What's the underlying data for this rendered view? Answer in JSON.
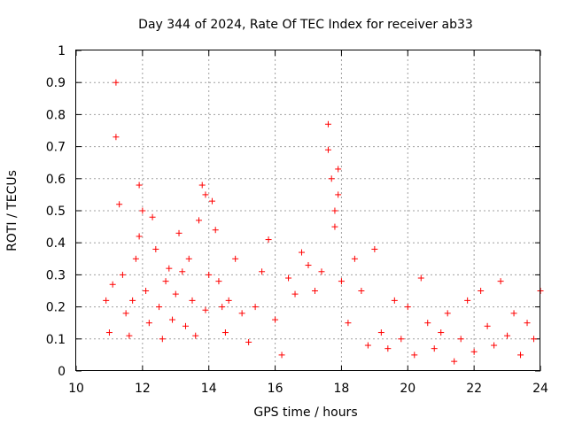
{
  "chart_data": {
    "type": "scatter",
    "title": "Day 344 of 2024, Rate Of TEC Index for receiver ab33",
    "xlabel": "GPS time / hours",
    "ylabel": "ROTI / TECUs",
    "xlim": [
      10,
      24
    ],
    "ylim": [
      0,
      1
    ],
    "grid": true,
    "marker": "+",
    "color": "#ff0000",
    "x_ticks": [
      "10",
      "12",
      "14",
      "16",
      "18",
      "20",
      "22",
      "24"
    ],
    "y_ticks": [
      "0",
      "0.1",
      "0.2",
      "0.3",
      "0.4",
      "0.5",
      "0.6",
      "0.7",
      "0.8",
      "0.9",
      "1"
    ],
    "series": [
      {
        "name": "ROTI",
        "x": [
          10.9,
          11.0,
          11.1,
          11.2,
          11.2,
          11.3,
          11.4,
          11.5,
          11.6,
          11.7,
          11.8,
          11.9,
          11.9,
          12.0,
          12.1,
          12.2,
          12.3,
          12.4,
          12.5,
          12.6,
          12.7,
          12.8,
          12.9,
          13.0,
          13.1,
          13.2,
          13.3,
          13.4,
          13.5,
          13.6,
          13.7,
          13.8,
          13.9,
          13.9,
          14.0,
          14.1,
          14.2,
          14.3,
          14.4,
          14.5,
          14.6,
          14.8,
          15.0,
          15.2,
          15.4,
          15.6,
          15.8,
          16.0,
          16.2,
          16.4,
          16.6,
          16.8,
          17.0,
          17.2,
          17.4,
          17.6,
          17.6,
          17.7,
          17.8,
          17.8,
          17.9,
          17.9,
          18.0,
          18.2,
          18.4,
          18.6,
          18.8,
          19.0,
          19.2,
          19.4,
          19.6,
          19.8,
          20.0,
          20.2,
          20.4,
          20.6,
          20.8,
          21.0,
          21.2,
          21.4,
          21.6,
          21.8,
          22.0,
          22.2,
          22.4,
          22.6,
          22.8,
          23.0,
          23.2,
          23.4,
          23.6,
          23.8,
          24.0
        ],
        "y": [
          0.22,
          0.12,
          0.27,
          0.9,
          0.73,
          0.52,
          0.3,
          0.18,
          0.11,
          0.22,
          0.35,
          0.58,
          0.42,
          0.5,
          0.25,
          0.15,
          0.48,
          0.38,
          0.2,
          0.1,
          0.28,
          0.32,
          0.16,
          0.24,
          0.43,
          0.31,
          0.14,
          0.35,
          0.22,
          0.11,
          0.47,
          0.58,
          0.55,
          0.19,
          0.3,
          0.53,
          0.44,
          0.28,
          0.2,
          0.12,
          0.22,
          0.35,
          0.18,
          0.09,
          0.2,
          0.31,
          0.41,
          0.16,
          0.05,
          0.29,
          0.24,
          0.37,
          0.33,
          0.25,
          0.31,
          0.77,
          0.69,
          0.6,
          0.5,
          0.45,
          0.63,
          0.55,
          0.28,
          0.15,
          0.35,
          0.25,
          0.08,
          0.38,
          0.12,
          0.07,
          0.22,
          0.1,
          0.2,
          0.05,
          0.29,
          0.15,
          0.07,
          0.12,
          0.18,
          0.03,
          0.1,
          0.22,
          0.06,
          0.25,
          0.14,
          0.08,
          0.28,
          0.11,
          0.18,
          0.05,
          0.15,
          0.1,
          0.25
        ]
      }
    ]
  }
}
